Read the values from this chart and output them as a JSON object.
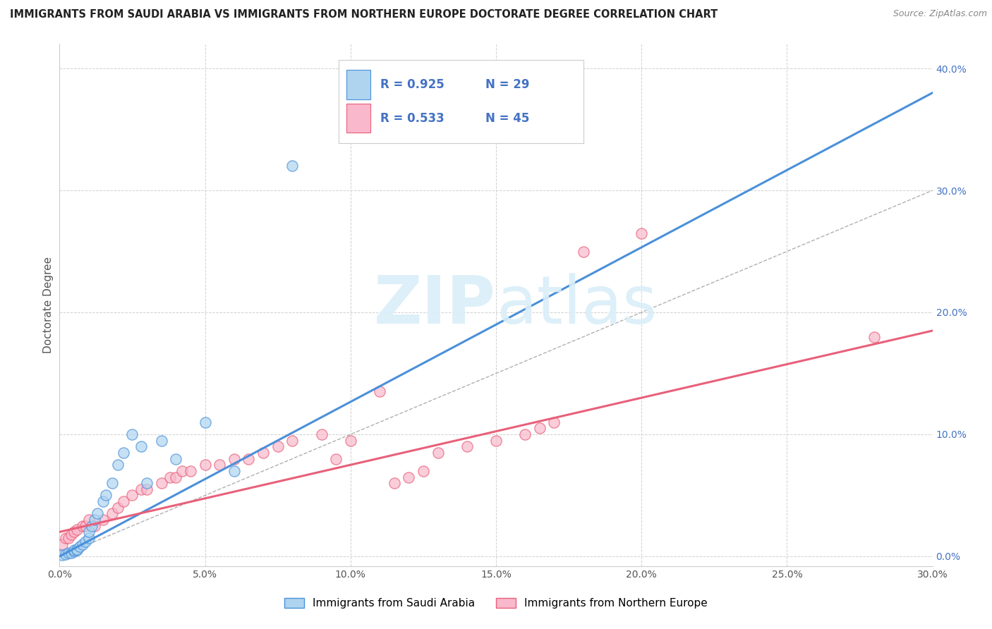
{
  "title": "IMMIGRANTS FROM SAUDI ARABIA VS IMMIGRANTS FROM NORTHERN EUROPE DOCTORATE DEGREE CORRELATION CHART",
  "source": "Source: ZipAtlas.com",
  "ylabel_label": "Doctorate Degree",
  "x_min": 0.0,
  "x_max": 0.3,
  "y_min": -0.008,
  "y_max": 0.42,
  "x_ticks": [
    0.0,
    0.05,
    0.1,
    0.15,
    0.2,
    0.25,
    0.3
  ],
  "x_tick_labels": [
    "0.0%",
    "5.0%",
    "10.0%",
    "15.0%",
    "20.0%",
    "25.0%",
    "30.0%"
  ],
  "y_ticks": [
    0.0,
    0.1,
    0.2,
    0.3,
    0.4
  ],
  "y_tick_labels": [
    "0.0%",
    "10.0%",
    "20.0%",
    "30.0%",
    "40.0%"
  ],
  "legend_label1": "Immigrants from Saudi Arabia",
  "legend_label2": "Immigrants from Northern Europe",
  "R1": 0.925,
  "N1": 29,
  "R2": 0.533,
  "N2": 45,
  "color_blue": "#aed4f0",
  "color_pink": "#f9b8cb",
  "line_blue": "#4a90d9",
  "line_pink": "#e8607a",
  "watermark_color": "#daeef8",
  "background_color": "#ffffff",
  "grid_color": "#d0d0d0",
  "saudi_x": [
    0.001,
    0.002,
    0.003,
    0.004,
    0.005,
    0.005,
    0.006,
    0.006,
    0.007,
    0.008,
    0.009,
    0.01,
    0.01,
    0.011,
    0.012,
    0.013,
    0.015,
    0.016,
    0.018,
    0.02,
    0.022,
    0.025,
    0.028,
    0.03,
    0.035,
    0.04,
    0.05,
    0.06,
    0.08
  ],
  "saudi_y": [
    0.001,
    0.002,
    0.003,
    0.003,
    0.004,
    0.005,
    0.005,
    0.006,
    0.008,
    0.01,
    0.012,
    0.015,
    0.02,
    0.025,
    0.03,
    0.035,
    0.045,
    0.05,
    0.06,
    0.075,
    0.085,
    0.1,
    0.09,
    0.06,
    0.095,
    0.08,
    0.11,
    0.07,
    0.32
  ],
  "northern_x": [
    0.001,
    0.002,
    0.003,
    0.004,
    0.005,
    0.006,
    0.008,
    0.009,
    0.01,
    0.012,
    0.015,
    0.018,
    0.02,
    0.022,
    0.025,
    0.028,
    0.03,
    0.035,
    0.038,
    0.04,
    0.042,
    0.045,
    0.05,
    0.055,
    0.06,
    0.065,
    0.07,
    0.075,
    0.08,
    0.09,
    0.095,
    0.1,
    0.11,
    0.115,
    0.12,
    0.125,
    0.13,
    0.14,
    0.15,
    0.16,
    0.165,
    0.17,
    0.18,
    0.2,
    0.28
  ],
  "northern_y": [
    0.01,
    0.015,
    0.015,
    0.018,
    0.02,
    0.022,
    0.025,
    0.025,
    0.03,
    0.025,
    0.03,
    0.035,
    0.04,
    0.045,
    0.05,
    0.055,
    0.055,
    0.06,
    0.065,
    0.065,
    0.07,
    0.07,
    0.075,
    0.075,
    0.08,
    0.08,
    0.085,
    0.09,
    0.095,
    0.1,
    0.08,
    0.095,
    0.135,
    0.06,
    0.065,
    0.07,
    0.085,
    0.09,
    0.095,
    0.1,
    0.105,
    0.11,
    0.25,
    0.265,
    0.18
  ],
  "blue_line_x0": 0.0,
  "blue_line_y0": 0.0,
  "blue_line_x1": 0.3,
  "blue_line_y1": 0.38,
  "pink_line_x0": 0.0,
  "pink_line_y0": 0.02,
  "pink_line_x1": 0.3,
  "pink_line_y1": 0.185
}
